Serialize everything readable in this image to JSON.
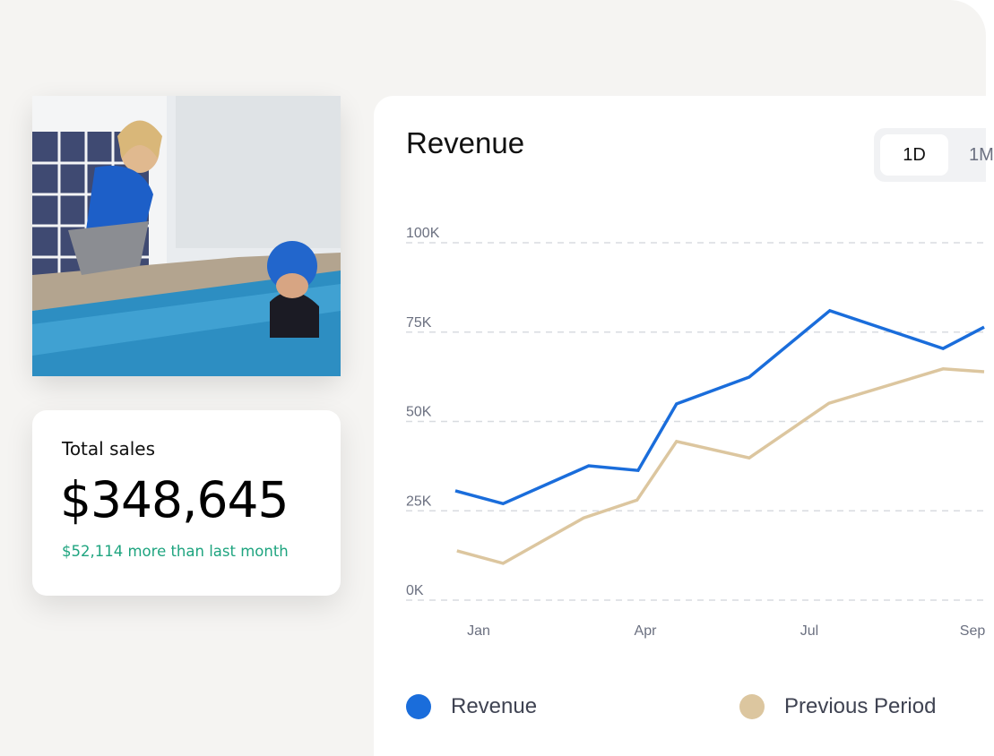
{
  "colors": {
    "revenue": "#1a6ddb",
    "previous": "#dcc69f",
    "positive": "#1ea47f",
    "grid": "#d8dbe0",
    "axis_text": "#6b7080"
  },
  "photo": {
    "description_icon": "swim-instructor-photo"
  },
  "sales_card": {
    "label": "Total sales",
    "value": "$348,645",
    "delta": "$52,114 more than last month"
  },
  "chart_card": {
    "title": "Revenue",
    "range_tabs": [
      {
        "label": "1D",
        "selected": true
      },
      {
        "label": "1M",
        "selected": false
      }
    ],
    "legend": [
      {
        "label": "Revenue"
      },
      {
        "label": "Previous Period"
      }
    ]
  },
  "chart_data": {
    "type": "line",
    "title": "Revenue",
    "y_ticks": [
      "0K",
      "25K",
      "50K",
      "75K",
      "100K"
    ],
    "y_tick_values": [
      0,
      25000,
      50000,
      75000,
      100000
    ],
    "ylim": [
      0,
      100000
    ],
    "x_ticks": [
      {
        "label": "Jan",
        "month": 1
      },
      {
        "label": "Apr",
        "month": 4
      },
      {
        "label": "Jul",
        "month": 7
      },
      {
        "label": "Sep",
        "month": 9
      }
    ],
    "grid": "horizontal dashed",
    "legend_placement": "bottom",
    "series": [
      {
        "name": "Revenue",
        "color": "#1a6ddb",
        "points": [
          [
            0.58,
            30600
          ],
          [
            1.44,
            27000
          ],
          [
            2.98,
            37600
          ],
          [
            3.87,
            36300
          ],
          [
            4.57,
            54900
          ],
          [
            5.9,
            62400
          ],
          [
            7.25,
            81000
          ],
          [
            8.64,
            70400
          ],
          [
            9.16,
            76400
          ]
        ]
      },
      {
        "name": "Previous Period",
        "color": "#dcc69f",
        "points": [
          [
            0.61,
            13800
          ],
          [
            1.44,
            10300
          ],
          [
            2.89,
            23000
          ],
          [
            3.85,
            28000
          ],
          [
            4.57,
            44400
          ],
          [
            5.9,
            39800
          ],
          [
            7.24,
            55100
          ],
          [
            8.64,
            64700
          ],
          [
            9.16,
            63900
          ]
        ]
      }
    ]
  }
}
